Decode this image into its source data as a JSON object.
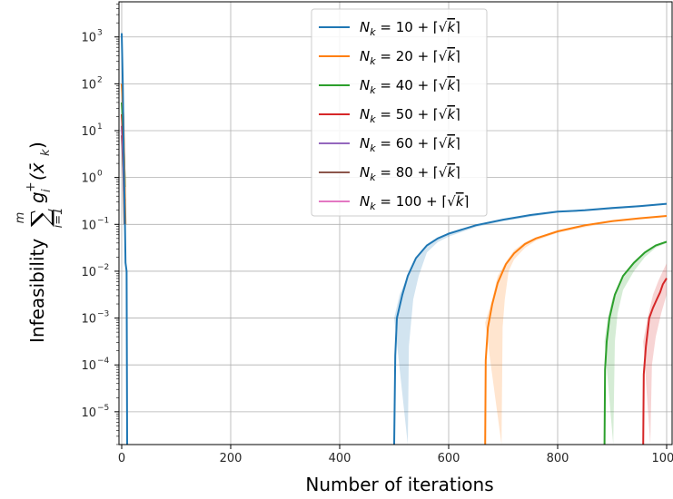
{
  "chart_data": {
    "type": "line",
    "xlabel": "Number of iterations",
    "ylabel_text": "Infeasibility",
    "ylabel_formula": {
      "sum": "∑",
      "upper": "m",
      "lower": "i=1",
      "body": "g",
      "sup": "+",
      "sub": "i",
      "arg": "(x̄",
      "argsub": "k",
      "close": ")"
    },
    "x_axis": {
      "scale": "linear",
      "range": [
        -5,
        1010
      ],
      "ticks": [
        0,
        200,
        400,
        600,
        800,
        1000
      ],
      "tick_labels": [
        "0",
        "200",
        "400",
        "600",
        "800",
        "1000"
      ]
    },
    "y_axis": {
      "scale": "log",
      "range_log10": [
        -5.7,
        3.75
      ],
      "ticks_log10": [
        -5,
        -4,
        -3,
        -2,
        -1,
        0,
        1,
        2,
        3
      ],
      "tick_labels": [
        {
          "base": "10",
          "exp": "−5"
        },
        {
          "base": "10",
          "exp": "−4"
        },
        {
          "base": "10",
          "exp": "−3"
        },
        {
          "base": "10",
          "exp": "−2"
        },
        {
          "base": "10",
          "exp": "−1"
        },
        {
          "base": "10",
          "exp": "0"
        },
        {
          "base": "10",
          "exp": "1"
        },
        {
          "base": "10",
          "exp": "2"
        },
        {
          "base": "10",
          "exp": "3"
        }
      ]
    },
    "grid": true,
    "legend": {
      "placement": "upper-center",
      "entries": [
        {
          "prefix": "N",
          "sub": "k",
          "mid": " = 10 + ⌈√",
          "k": "k",
          "suffix": "⌉"
        },
        {
          "prefix": "N",
          "sub": "k",
          "mid": " = 20 + ⌈√",
          "k": "k",
          "suffix": "⌉"
        },
        {
          "prefix": "N",
          "sub": "k",
          "mid": " = 40 + ⌈√",
          "k": "k",
          "suffix": "⌉"
        },
        {
          "prefix": "N",
          "sub": "k",
          "mid": " = 50 + ⌈√",
          "k": "k",
          "suffix": "⌉"
        },
        {
          "prefix": "N",
          "sub": "k",
          "mid": " = 60 + ⌈√",
          "k": "k",
          "suffix": "⌉"
        },
        {
          "prefix": "N",
          "sub": "k",
          "mid": " = 80 + ⌈√",
          "k": "k",
          "suffix": "⌉"
        },
        {
          "prefix": "N",
          "sub": "k",
          "mid": " = 100 + ⌈√",
          "k": "k",
          "suffix": "⌉"
        }
      ]
    },
    "series": [
      {
        "color": "#1f77b4",
        "initial_spike": [
          [
            0,
            3.08
          ],
          [
            2,
            2.0
          ],
          [
            4,
            0.3
          ],
          [
            6,
            -1.0
          ],
          [
            7,
            -1.82
          ],
          [
            9,
            -2.0
          ],
          [
            10,
            -5.7
          ]
        ],
        "line": [
          [
            500,
            -5.7
          ],
          [
            502,
            -3.8
          ],
          [
            505,
            -3.0
          ],
          [
            515,
            -2.5
          ],
          [
            525,
            -2.1
          ],
          [
            540,
            -1.72
          ],
          [
            560,
            -1.45
          ],
          [
            580,
            -1.3
          ],
          [
            600,
            -1.2
          ],
          [
            650,
            -1.02
          ],
          [
            700,
            -0.9
          ],
          [
            750,
            -0.8
          ],
          [
            800,
            -0.73
          ],
          [
            850,
            -0.7
          ],
          [
            900,
            -0.65
          ],
          [
            950,
            -0.61
          ],
          [
            1000,
            -0.56
          ]
        ],
        "band_upper": [
          [
            500,
            -3.0
          ],
          [
            510,
            -2.5
          ],
          [
            525,
            -2.1
          ],
          [
            540,
            -1.72
          ],
          [
            560,
            -1.45
          ],
          [
            600,
            -1.17
          ],
          [
            650,
            -1.0
          ],
          [
            700,
            -0.88
          ],
          [
            800,
            -0.72
          ],
          [
            900,
            -0.63
          ],
          [
            1000,
            -0.55
          ]
        ],
        "band_lower": [
          [
            1000,
            -0.58
          ],
          [
            900,
            -0.68
          ],
          [
            800,
            -0.75
          ],
          [
            700,
            -0.93
          ],
          [
            650,
            -1.06
          ],
          [
            600,
            -1.26
          ],
          [
            580,
            -1.38
          ],
          [
            560,
            -1.6
          ],
          [
            545,
            -2.1
          ],
          [
            535,
            -2.6
          ],
          [
            527,
            -3.6
          ],
          [
            525,
            -5.7
          ]
        ]
      },
      {
        "color": "#ff7f0e",
        "initial_spike": [
          [
            0,
            2.0
          ],
          [
            3,
            1.3
          ],
          [
            5,
            0.2
          ],
          [
            7,
            -1.0
          ]
        ],
        "line": [
          [
            667,
            -5.7
          ],
          [
            668,
            -3.9
          ],
          [
            672,
            -3.2
          ],
          [
            680,
            -2.7
          ],
          [
            690,
            -2.25
          ],
          [
            705,
            -1.85
          ],
          [
            720,
            -1.62
          ],
          [
            740,
            -1.42
          ],
          [
            760,
            -1.3
          ],
          [
            800,
            -1.15
          ],
          [
            850,
            -1.02
          ],
          [
            900,
            -0.93
          ],
          [
            950,
            -0.87
          ],
          [
            1000,
            -0.82
          ]
        ],
        "band_upper": [
          [
            667,
            -3.1
          ],
          [
            680,
            -2.6
          ],
          [
            690,
            -2.1
          ],
          [
            705,
            -1.8
          ],
          [
            720,
            -1.55
          ],
          [
            740,
            -1.38
          ],
          [
            760,
            -1.28
          ],
          [
            800,
            -1.13
          ],
          [
            900,
            -0.92
          ],
          [
            1000,
            -0.81
          ]
        ],
        "band_lower": [
          [
            1000,
            -0.84
          ],
          [
            900,
            -0.95
          ],
          [
            800,
            -1.18
          ],
          [
            760,
            -1.35
          ],
          [
            740,
            -1.5
          ],
          [
            720,
            -1.75
          ],
          [
            710,
            -2.0
          ],
          [
            703,
            -2.6
          ],
          [
            699,
            -3.2
          ],
          [
            697,
            -5.7
          ]
        ]
      },
      {
        "color": "#2ca02c",
        "initial_spike": [
          [
            0,
            1.6
          ],
          [
            3,
            1.0
          ],
          [
            6,
            -0.2
          ]
        ],
        "line": [
          [
            886,
            -5.7
          ],
          [
            887,
            -4.1
          ],
          [
            890,
            -3.5
          ],
          [
            895,
            -3.0
          ],
          [
            905,
            -2.5
          ],
          [
            920,
            -2.1
          ],
          [
            940,
            -1.82
          ],
          [
            960,
            -1.6
          ],
          [
            980,
            -1.45
          ],
          [
            1000,
            -1.37
          ]
        ],
        "band_upper": [
          [
            886,
            -3.5
          ],
          [
            892,
            -3.0
          ],
          [
            900,
            -2.6
          ],
          [
            915,
            -2.2
          ],
          [
            935,
            -1.85
          ],
          [
            960,
            -1.58
          ],
          [
            980,
            -1.43
          ],
          [
            1000,
            -1.35
          ]
        ],
        "band_lower": [
          [
            1000,
            -1.4
          ],
          [
            980,
            -1.5
          ],
          [
            960,
            -1.7
          ],
          [
            940,
            -2.0
          ],
          [
            920,
            -2.4
          ],
          [
            910,
            -2.9
          ],
          [
            905,
            -3.5
          ],
          [
            902,
            -5.7
          ]
        ]
      },
      {
        "color": "#d62728",
        "initial_spike": [
          [
            0,
            1.35
          ],
          [
            3,
            0.7
          ],
          [
            6,
            -0.5
          ]
        ],
        "line": [
          [
            957,
            -5.7
          ],
          [
            958,
            -4.2
          ],
          [
            962,
            -3.6
          ],
          [
            968,
            -3.0
          ],
          [
            975,
            -2.78
          ],
          [
            982,
            -2.6
          ],
          [
            988,
            -2.45
          ],
          [
            993,
            -2.28
          ],
          [
            1000,
            -2.15
          ]
        ],
        "band_upper": [
          [
            957,
            -3.5
          ],
          [
            965,
            -3.0
          ],
          [
            975,
            -2.5
          ],
          [
            985,
            -2.2
          ],
          [
            995,
            -1.95
          ],
          [
            1000,
            -1.83
          ]
        ],
        "band_lower": [
          [
            1000,
            -2.5
          ],
          [
            990,
            -2.9
          ],
          [
            980,
            -3.4
          ],
          [
            973,
            -4.0
          ],
          [
            970,
            -5.7
          ]
        ]
      },
      {
        "color": "#9467bd",
        "initial_spike": [
          [
            0,
            1.1
          ],
          [
            3,
            0.4
          ],
          [
            6,
            -0.8
          ]
        ],
        "line": [],
        "band_upper": [],
        "band_lower": []
      },
      {
        "color": "#8c564b",
        "initial_spike": [
          [
            0,
            0.9
          ],
          [
            3,
            0.2
          ],
          [
            5,
            -1.0
          ]
        ],
        "line": [],
        "band_upper": [],
        "band_lower": []
      },
      {
        "color": "#e377c2",
        "initial_spike": [
          [
            0,
            1.1
          ],
          [
            2,
            0.6
          ],
          [
            4,
            -0.3
          ]
        ],
        "line": [],
        "band_upper": [],
        "band_lower": []
      }
    ]
  }
}
